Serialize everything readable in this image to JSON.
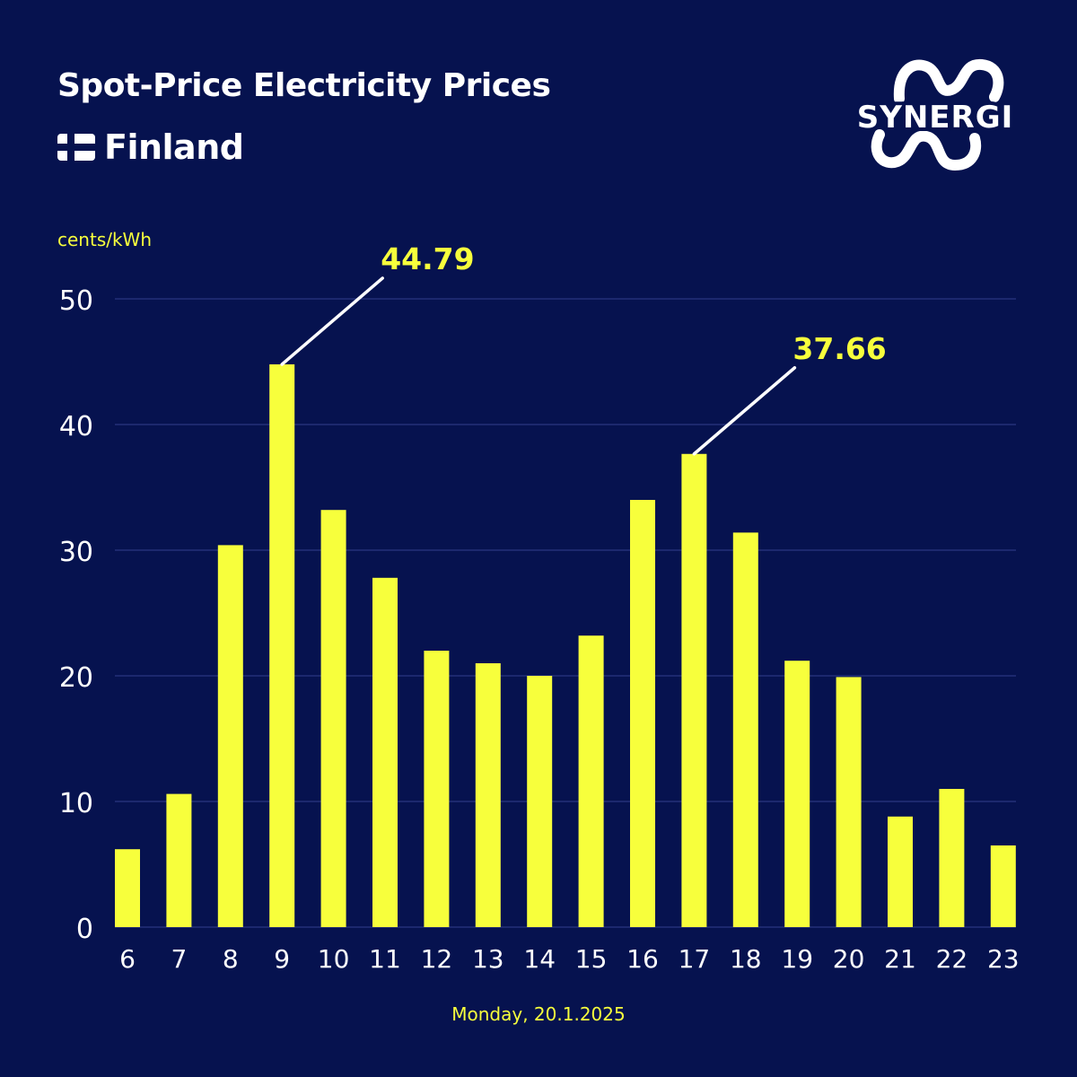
{
  "title": "Spot-Price Electricity Prices",
  "country": "Finland",
  "brand": "SYNERGI",
  "unit": "cents/kWh",
  "date": "Monday, 20.1.2025",
  "colors": {
    "background": "#06124f",
    "bar": "#f7ff3c",
    "text": "#ffffff",
    "accent": "#f7ff3c",
    "grid": "#2a3580"
  },
  "chart_data": {
    "type": "bar",
    "title": "Spot-Price Electricity Prices",
    "subtitle": "Finland",
    "xlabel": "Monday, 20.1.2025",
    "ylabel": "cents/kWh",
    "ylim": [
      0,
      50
    ],
    "yticks": [
      0,
      10,
      20,
      30,
      40,
      50
    ],
    "grid": true,
    "categories": [
      "6",
      "7",
      "8",
      "9",
      "10",
      "11",
      "12",
      "13",
      "14",
      "15",
      "16",
      "17",
      "18",
      "19",
      "20",
      "21",
      "22",
      "23"
    ],
    "values": [
      6.2,
      10.6,
      30.4,
      44.79,
      33.2,
      27.8,
      22.0,
      21.0,
      20.0,
      23.2,
      34.0,
      37.66,
      31.4,
      21.2,
      19.9,
      8.8,
      11.0,
      6.5
    ],
    "annotations": [
      {
        "category": "9",
        "label": "44.79"
      },
      {
        "category": "17",
        "label": "37.66"
      }
    ]
  }
}
